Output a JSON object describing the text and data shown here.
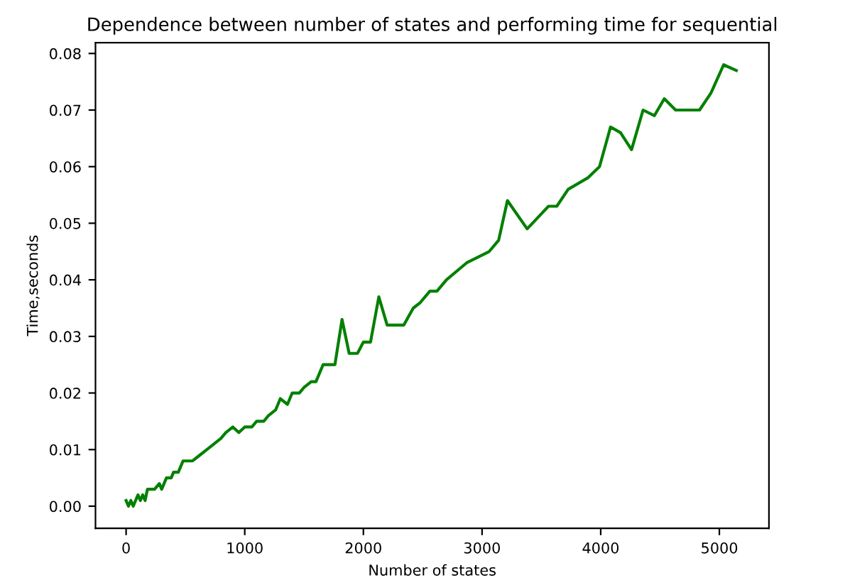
{
  "chart_data": {
    "type": "line",
    "title": "Dependence between number of states and performing time for sequential",
    "xlabel": "Number of states",
    "ylabel": "Time,seconds",
    "xlim": [
      -258,
      5418
    ],
    "xticks": [
      0,
      1000,
      2000,
      3000,
      4000,
      5000
    ],
    "ylim": [
      -0.0039,
      0.0819
    ],
    "yticks": [
      {
        "value": 0,
        "label": "0.00"
      },
      {
        "value": 0.01,
        "label": "0.01"
      },
      {
        "value": 0.02,
        "label": "0.02"
      },
      {
        "value": 0.03,
        "label": "0.03"
      },
      {
        "value": 0.04,
        "label": "0.04"
      },
      {
        "value": 0.05,
        "label": "0.05"
      },
      {
        "value": 0.06,
        "label": "0.06"
      },
      {
        "value": 0.07,
        "label": "0.07"
      },
      {
        "value": 0.08,
        "label": "0.08"
      }
    ],
    "grid": false,
    "series": [
      {
        "color": "#008000",
        "x": [
          0,
          20,
          40,
          60,
          80,
          100,
          120,
          140,
          160,
          180,
          240,
          280,
          300,
          340,
          380,
          400,
          440,
          480,
          560,
          620,
          680,
          740,
          800,
          840,
          900,
          950,
          1000,
          1060,
          1100,
          1160,
          1200,
          1260,
          1300,
          1360,
          1400,
          1460,
          1500,
          1560,
          1600,
          1660,
          1760,
          1820,
          1880,
          1950,
          2000,
          2060,
          2130,
          2200,
          2340,
          2420,
          2480,
          2560,
          2620,
          2700,
          2870,
          3060,
          3140,
          3214,
          3380,
          3560,
          3630,
          3726,
          3890,
          3990,
          4083,
          4167,
          4260,
          4357,
          4452,
          4536,
          4631,
          4833,
          4929,
          5036,
          5143
        ],
        "values": [
          0.001,
          0,
          0.001,
          0,
          0.001,
          0.002,
          0.001,
          0.002,
          0.001,
          0.003,
          0.003,
          0.004,
          0.003,
          0.005,
          0.005,
          0.006,
          0.006,
          0.008,
          0.008,
          0.009,
          0.01,
          0.011,
          0.012,
          0.013,
          0.014,
          0.013,
          0.014,
          0.014,
          0.015,
          0.015,
          0.016,
          0.017,
          0.019,
          0.018,
          0.02,
          0.02,
          0.021,
          0.022,
          0.022,
          0.025,
          0.025,
          0.033,
          0.027,
          0.027,
          0.029,
          0.029,
          0.037,
          0.032,
          0.032,
          0.035,
          0.036,
          0.038,
          0.038,
          0.04,
          0.043,
          0.045,
          0.047,
          0.054,
          0.049,
          0.053,
          0.053,
          0.056,
          0.058,
          0.06,
          0.067,
          0.066,
          0.063,
          0.07,
          0.069,
          0.072,
          0.07,
          0.07,
          0.073,
          0.078,
          0.077
        ]
      }
    ]
  }
}
